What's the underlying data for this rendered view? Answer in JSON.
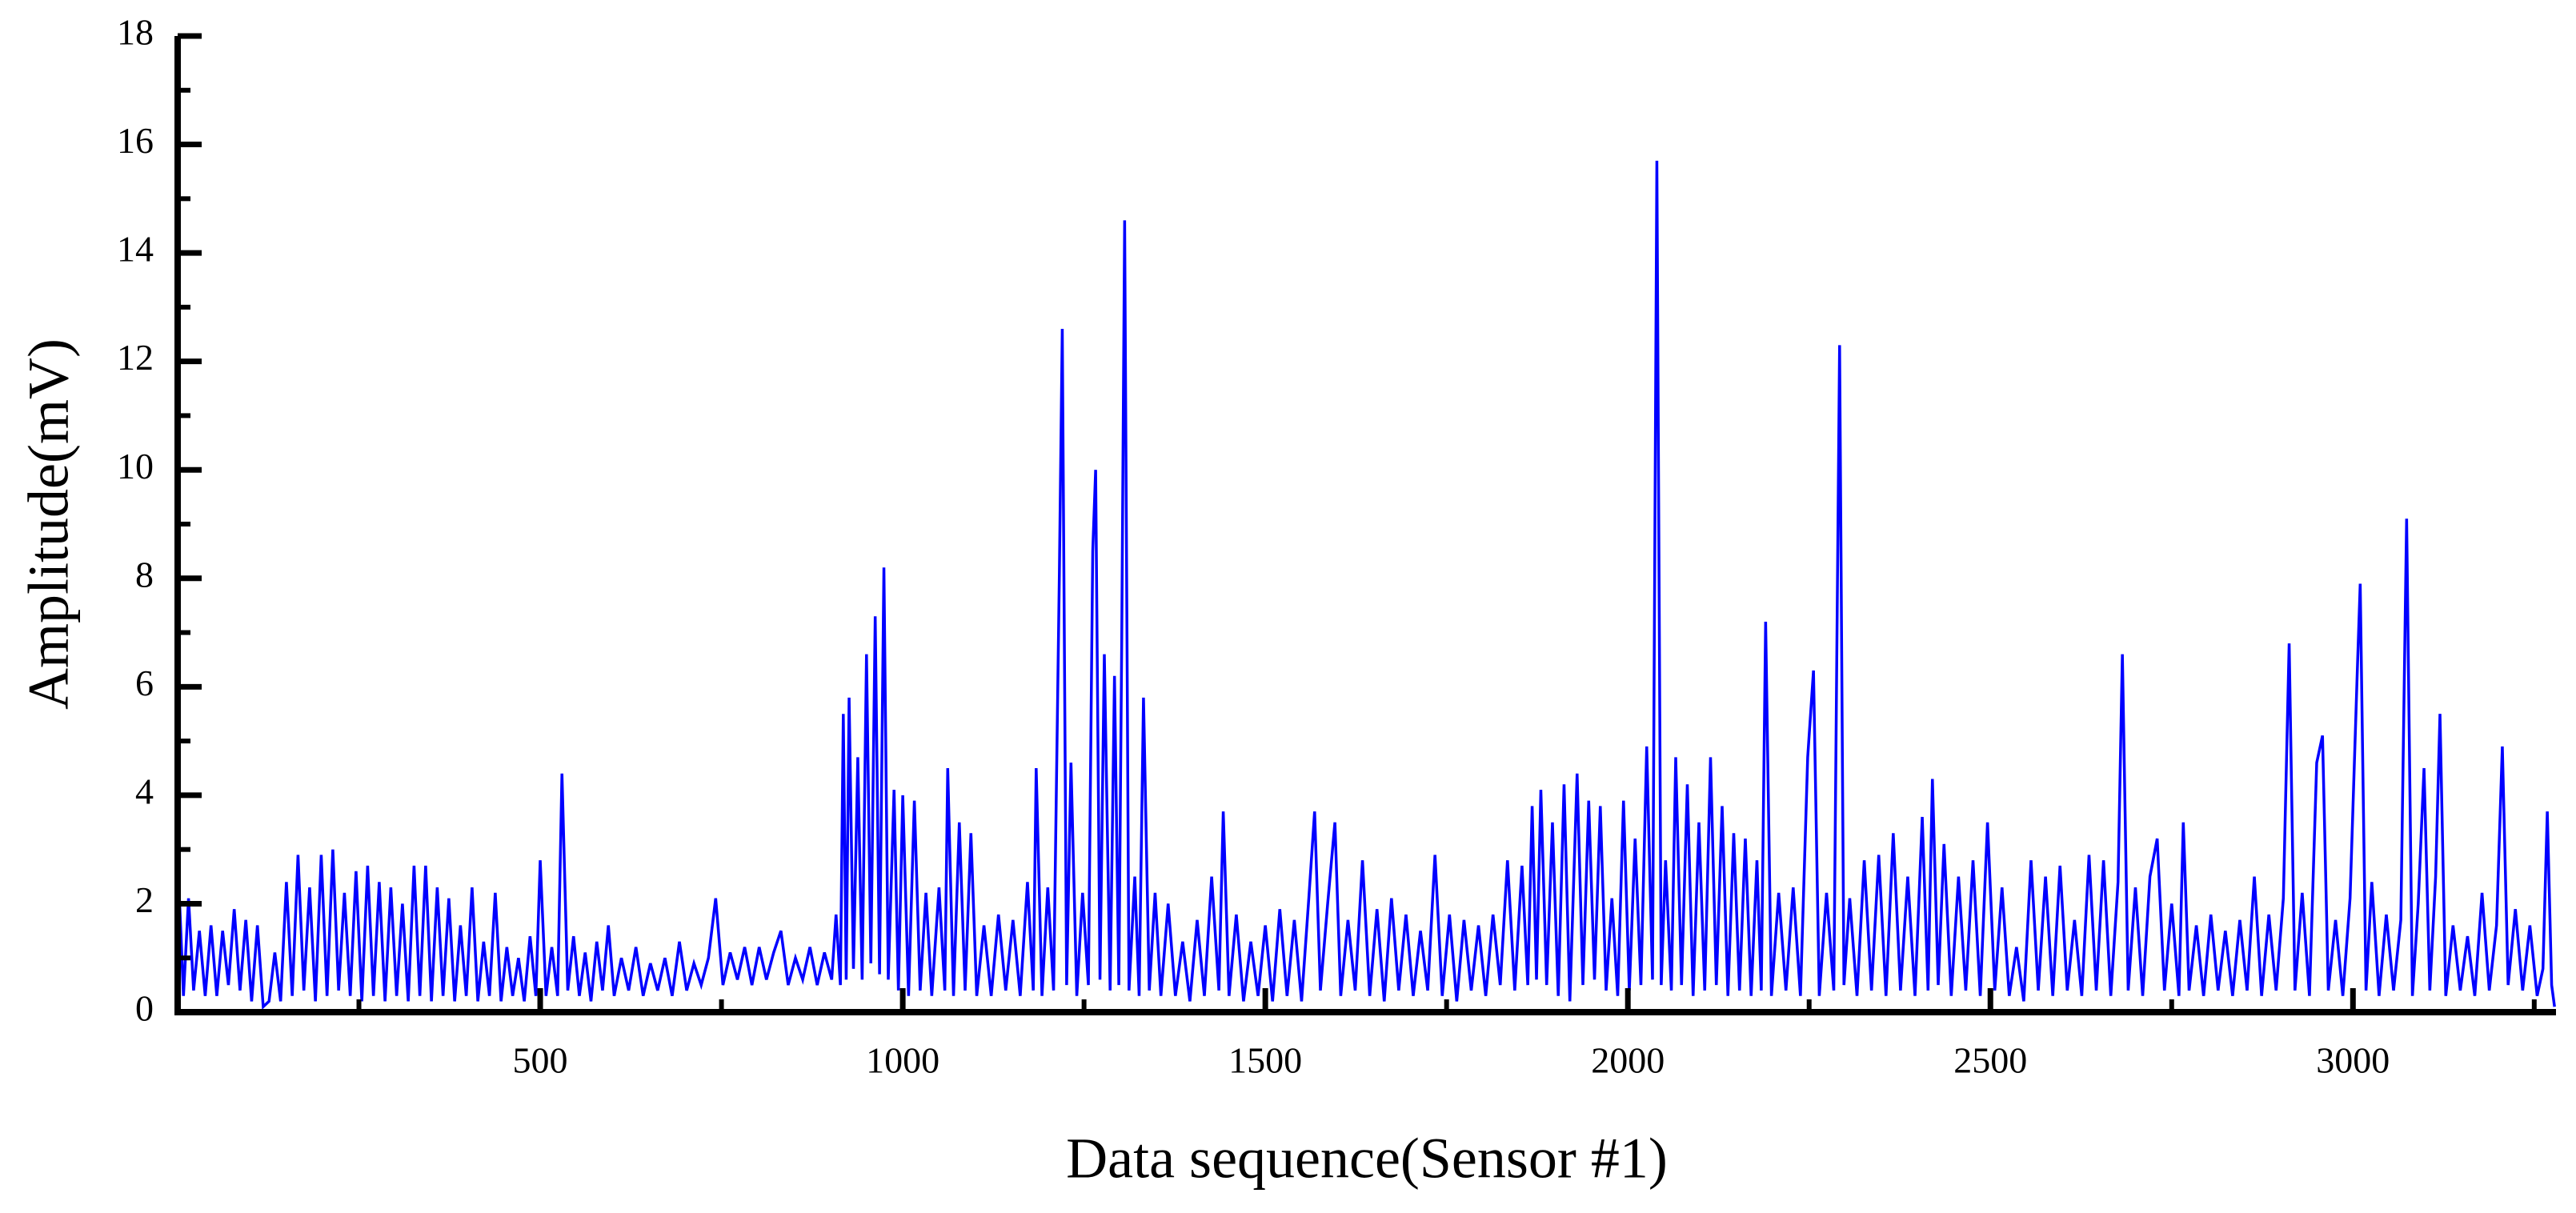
{
  "chart_data": {
    "type": "line",
    "xlabel": "Data sequence(Sensor #1)",
    "ylabel": "Amplitude(mV)",
    "xlim": [
      0,
      3280
    ],
    "ylim": [
      0,
      18
    ],
    "xticks": [
      500,
      1000,
      1500,
      2000,
      2500,
      3000
    ],
    "xminor_ticks": [
      250,
      750,
      1250,
      1750,
      2250,
      2750,
      3250
    ],
    "yticks": [
      0,
      2,
      4,
      6,
      8,
      10,
      12,
      14,
      16,
      18
    ],
    "yminor_ticks": [
      1,
      3,
      5,
      7,
      9,
      11,
      13,
      15,
      17
    ],
    "x": [
      0,
      8,
      15,
      22,
      30,
      38,
      46,
      54,
      62,
      70,
      78,
      86,
      94,
      102,
      110,
      118,
      126,
      134,
      142,
      150,
      158,
      166,
      174,
      182,
      190,
      198,
      206,
      214,
      222,
      230,
      238,
      246,
      254,
      262,
      270,
      278,
      286,
      294,
      302,
      310,
      318,
      326,
      334,
      342,
      350,
      358,
      366,
      374,
      382,
      390,
      398,
      406,
      414,
      422,
      430,
      438,
      446,
      454,
      462,
      470,
      478,
      486,
      494,
      500,
      508,
      516,
      524,
      530,
      538,
      546,
      554,
      562,
      570,
      578,
      586,
      594,
      602,
      612,
      622,
      632,
      642,
      652,
      662,
      672,
      682,
      692,
      702,
      712,
      722,
      732,
      742,
      752,
      762,
      772,
      782,
      792,
      802,
      812,
      822,
      832,
      842,
      852,
      862,
      872,
      882,
      892,
      902,
      908,
      914,
      918,
      922,
      926,
      932,
      938,
      944,
      950,
      956,
      962,
      968,
      974,
      980,
      988,
      994,
      1000,
      1008,
      1016,
      1024,
      1032,
      1040,
      1050,
      1058,
      1062,
      1070,
      1078,
      1086,
      1094,
      1102,
      1112,
      1122,
      1132,
      1142,
      1152,
      1162,
      1172,
      1180,
      1184,
      1192,
      1200,
      1208,
      1216,
      1220,
      1226,
      1232,
      1240,
      1248,
      1256,
      1262,
      1266,
      1272,
      1278,
      1286,
      1292,
      1298,
      1302,
      1306,
      1312,
      1320,
      1326,
      1332,
      1340,
      1348,
      1356,
      1366,
      1376,
      1386,
      1396,
      1406,
      1416,
      1426,
      1436,
      1442,
      1450,
      1460,
      1470,
      1480,
      1490,
      1500,
      1510,
      1520,
      1530,
      1540,
      1550,
      1560,
      1568,
      1576,
      1586,
      1596,
      1604,
      1614,
      1624,
      1634,
      1644,
      1654,
      1664,
      1674,
      1684,
      1694,
      1704,
      1714,
      1724,
      1734,
      1744,
      1754,
      1764,
      1774,
      1784,
      1794,
      1804,
      1814,
      1824,
      1834,
      1844,
      1854,
      1862,
      1868,
      1874,
      1880,
      1888,
      1896,
      1904,
      1912,
      1920,
      1930,
      1938,
      1946,
      1954,
      1962,
      1970,
      1978,
      1986,
      1994,
      2002,
      2010,
      2018,
      2026,
      2034,
      2040,
      2046,
      2052,
      2060,
      2066,
      2074,
      2082,
      2090,
      2098,
      2106,
      2114,
      2122,
      2130,
      2138,
      2146,
      2154,
      2162,
      2170,
      2178,
      2184,
      2190,
      2198,
      2208,
      2218,
      2228,
      2238,
      2248,
      2256,
      2264,
      2274,
      2284,
      2292,
      2298,
      2306,
      2316,
      2326,
      2336,
      2346,
      2356,
      2366,
      2376,
      2386,
      2396,
      2406,
      2414,
      2420,
      2428,
      2436,
      2446,
      2456,
      2466,
      2476,
      2486,
      2496,
      2506,
      2516,
      2526,
      2536,
      2546,
      2556,
      2566,
      2576,
      2586,
      2596,
      2606,
      2616,
      2626,
      2636,
      2646,
      2656,
      2666,
      2676,
      2682,
      2690,
      2700,
      2710,
      2720,
      2730,
      2740,
      2750,
      2760,
      2766,
      2774,
      2784,
      2794,
      2804,
      2814,
      2824,
      2834,
      2844,
      2854,
      2864,
      2874,
      2884,
      2894,
      2904,
      2912,
      2920,
      2930,
      2940,
      2950,
      2958,
      2966,
      2976,
      2986,
      2996,
      3006,
      3010,
      3018,
      3026,
      3036,
      3046,
      3056,
      3066,
      3074,
      3082,
      3090,
      3098,
      3106,
      3114,
      3120,
      3128,
      3138,
      3148,
      3158,
      3168,
      3178,
      3188,
      3198,
      3206,
      3214,
      3224,
      3234,
      3244,
      3254,
      3262,
      3268,
      3274,
      3278
    ],
    "series": [
      {
        "name": "Sensor #1",
        "color": "#0000ff",
        "values": [
          2.9,
          0.3,
          2.1,
          0.4,
          1.5,
          0.3,
          1.6,
          0.3,
          1.5,
          0.5,
          1.9,
          0.4,
          1.7,
          0.2,
          1.6,
          0.1,
          0.2,
          1.1,
          0.2,
          2.4,
          0.3,
          2.9,
          0.4,
          2.3,
          0.2,
          2.9,
          0.3,
          3.0,
          0.4,
          2.2,
          0.3,
          2.6,
          0.2,
          2.7,
          0.3,
          2.4,
          0.2,
          2.3,
          0.3,
          2.0,
          0.2,
          2.7,
          0.3,
          2.7,
          0.2,
          2.3,
          0.3,
          2.1,
          0.2,
          1.6,
          0.3,
          2.3,
          0.2,
          1.3,
          0.3,
          2.2,
          0.2,
          1.2,
          0.3,
          1.0,
          0.2,
          1.4,
          0.3,
          2.8,
          0.3,
          1.2,
          0.3,
          4.4,
          0.4,
          1.4,
          0.3,
          1.1,
          0.2,
          1.3,
          0.4,
          1.6,
          0.3,
          1.0,
          0.4,
          1.2,
          0.3,
          0.9,
          0.4,
          1.0,
          0.3,
          1.3,
          0.4,
          0.9,
          0.5,
          1.0,
          2.1,
          0.5,
          1.1,
          0.6,
          1.2,
          0.5,
          1.2,
          0.6,
          1.1,
          1.5,
          0.5,
          1.0,
          0.6,
          1.2,
          0.5,
          1.1,
          0.6,
          1.8,
          0.5,
          5.5,
          0.6,
          5.8,
          0.8,
          4.7,
          0.6,
          6.6,
          0.9,
          7.3,
          0.7,
          8.2,
          0.6,
          4.1,
          0.4,
          4.0,
          0.3,
          3.9,
          0.4,
          2.2,
          0.3,
          2.3,
          0.4,
          4.5,
          0.3,
          3.5,
          0.4,
          3.3,
          0.3,
          1.6,
          0.3,
          1.8,
          0.4,
          1.7,
          0.3,
          2.4,
          0.4,
          4.5,
          0.3,
          2.3,
          0.4,
          8.1,
          12.6,
          0.5,
          4.6,
          0.3,
          2.2,
          0.5,
          8.5,
          10.0,
          0.6,
          6.6,
          0.4,
          6.2,
          0.5,
          6.9,
          14.6,
          0.4,
          2.5,
          0.3,
          5.8,
          0.4,
          2.2,
          0.3,
          2.0,
          0.3,
          1.3,
          0.2,
          1.7,
          0.3,
          2.5,
          0.4,
          3.7,
          0.3,
          1.8,
          0.2,
          1.3,
          0.3,
          1.6,
          0.2,
          1.9,
          0.3,
          1.7,
          0.2,
          2.1,
          3.7,
          0.4,
          2.0,
          3.5,
          0.3,
          1.7,
          0.4,
          2.8,
          0.3,
          1.9,
          0.2,
          2.1,
          0.4,
          1.8,
          0.3,
          1.5,
          0.4,
          2.9,
          0.3,
          1.8,
          0.2,
          1.7,
          0.4,
          1.6,
          0.3,
          1.8,
          0.5,
          2.8,
          0.4,
          2.7,
          0.5,
          3.8,
          0.6,
          4.1,
          0.5,
          3.5,
          0.3,
          4.2,
          0.2,
          4.4,
          0.5,
          3.9,
          0.6,
          3.8,
          0.4,
          2.1,
          0.3,
          3.9,
          0.4,
          3.2,
          0.5,
          4.9,
          0.6,
          15.7,
          0.5,
          2.8,
          0.4,
          4.7,
          0.5,
          4.2,
          0.3,
          3.5,
          0.4,
          4.7,
          0.5,
          3.8,
          0.3,
          3.3,
          0.4,
          3.2,
          0.3,
          2.8,
          0.4,
          7.2,
          0.3,
          2.2,
          0.4,
          2.3,
          0.3,
          4.7,
          6.3,
          0.3,
          2.2,
          0.4,
          12.3,
          0.5,
          2.1,
          0.3,
          2.8,
          0.4,
          2.9,
          0.3,
          3.3,
          0.4,
          2.5,
          0.3,
          3.6,
          0.4,
          4.3,
          0.5,
          3.1,
          0.3,
          2.5,
          0.4,
          2.8,
          0.3,
          3.5,
          0.4,
          2.3,
          0.3,
          1.2,
          0.2,
          2.8,
          0.4,
          2.5,
          0.3,
          2.7,
          0.4,
          1.7,
          0.3,
          2.9,
          0.4,
          2.8,
          0.3,
          2.4,
          6.6,
          0.4,
          2.3,
          0.3,
          2.5,
          3.2,
          0.4,
          2.0,
          0.3,
          3.5,
          0.4,
          1.6,
          0.3,
          1.8,
          0.4,
          1.5,
          0.3,
          1.7,
          0.4,
          2.5,
          0.3,
          1.8,
          0.4,
          2.1,
          6.8,
          0.4,
          2.2,
          0.3,
          4.6,
          5.1,
          0.4,
          1.7,
          0.3,
          2.1,
          6.3,
          7.9,
          0.4,
          2.4,
          0.3,
          1.8,
          0.4,
          1.7,
          9.1,
          0.3,
          2.0,
          4.5,
          0.4,
          2.5,
          5.5,
          0.3,
          1.6,
          0.4,
          1.4,
          0.3,
          2.2,
          0.4,
          1.6,
          4.9,
          0.5,
          1.9,
          0.4,
          1.6,
          0.3,
          0.8,
          3.7,
          0.5,
          0.1
        ]
      }
    ]
  }
}
